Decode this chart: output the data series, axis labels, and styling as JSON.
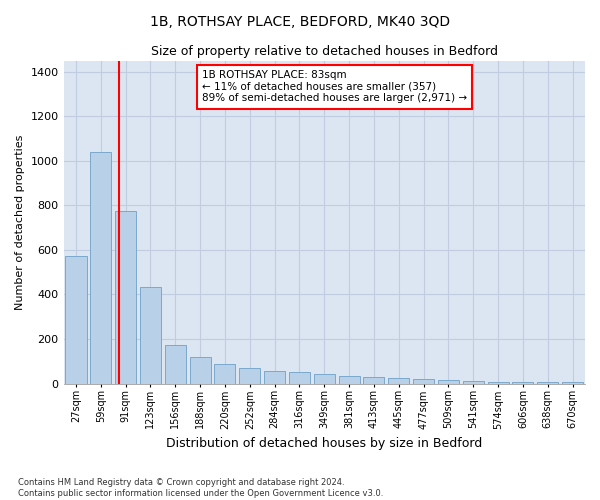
{
  "title": "1B, ROTHSAY PLACE, BEDFORD, MK40 3QD",
  "subtitle": "Size of property relative to detached houses in Bedford",
  "xlabel": "Distribution of detached houses by size in Bedford",
  "ylabel": "Number of detached properties",
  "bar_color": "#b8d0e8",
  "bar_edge_color": "#6fa0c8",
  "background_color": "#dce6f2",
  "annotation_text": "1B ROTHSAY PLACE: 83sqm\n← 11% of detached houses are smaller (357)\n89% of semi-detached houses are larger (2,971) →",
  "vline_color": "red",
  "categories": [
    "27sqm",
    "59sqm",
    "91sqm",
    "123sqm",
    "156sqm",
    "188sqm",
    "220sqm",
    "252sqm",
    "284sqm",
    "316sqm",
    "349sqm",
    "381sqm",
    "413sqm",
    "445sqm",
    "477sqm",
    "509sqm",
    "541sqm",
    "574sqm",
    "606sqm",
    "638sqm",
    "670sqm"
  ],
  "values": [
    575,
    1040,
    775,
    435,
    175,
    120,
    90,
    70,
    55,
    50,
    45,
    35,
    30,
    25,
    20,
    15,
    10,
    5,
    5,
    5,
    5
  ],
  "ylim": [
    0,
    1450
  ],
  "yticks": [
    0,
    200,
    400,
    600,
    800,
    1000,
    1200,
    1400
  ],
  "footer": "Contains HM Land Registry data © Crown copyright and database right 2024.\nContains public sector information licensed under the Open Government Licence v3.0.",
  "grid_color": "#c0cce0",
  "vline_pos": 1.75
}
